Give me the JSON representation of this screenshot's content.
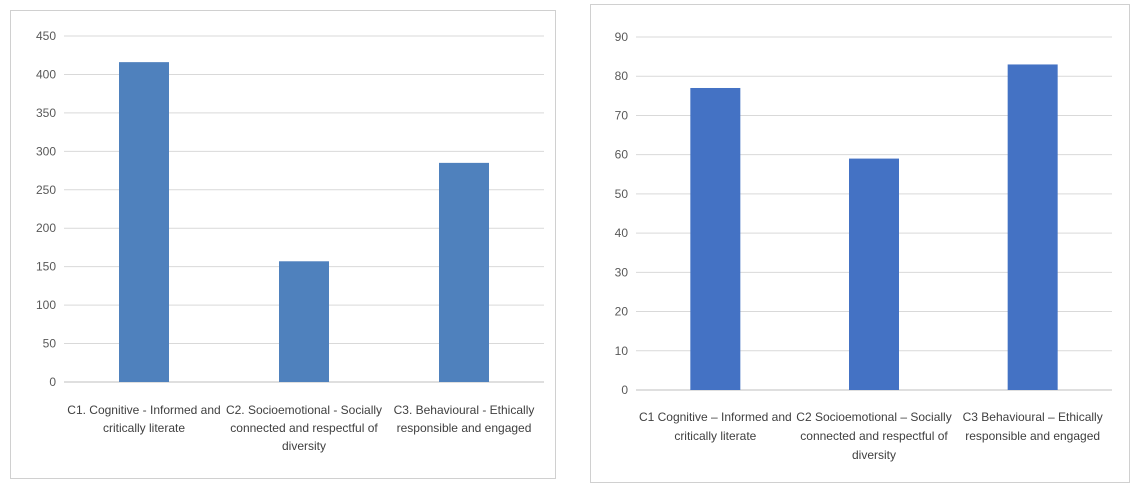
{
  "chart_data": [
    {
      "type": "bar",
      "categories": [
        [
          "C1. Cognitive - Informed and",
          "critically literate"
        ],
        [
          "C2. Socioemotional - Socially",
          "connected and respectful of",
          "diversity"
        ],
        [
          "C3. Behavioural - Ethically",
          "responsible and engaged"
        ]
      ],
      "values": [
        416,
        157,
        285
      ],
      "ylim": [
        0,
        450
      ],
      "yticks": [
        0,
        50,
        100,
        150,
        200,
        250,
        300,
        350,
        400,
        450
      ],
      "grid": true,
      "bar_color": "#4f81bd",
      "title": "",
      "xlabel": "",
      "ylabel": ""
    },
    {
      "type": "bar",
      "categories": [
        [
          "C1 Cognitive – Informed and",
          "critically literate"
        ],
        [
          "C2 Socioemotional – Socially",
          "connected and respectful of",
          "diversity"
        ],
        [
          "C3 Behavioural – Ethically",
          "responsible and engaged"
        ]
      ],
      "values": [
        77,
        59,
        83
      ],
      "ylim": [
        0,
        90
      ],
      "yticks": [
        0,
        10,
        20,
        30,
        40,
        50,
        60,
        70,
        80,
        90
      ],
      "grid": true,
      "bar_color": "#4472c4",
      "title": "",
      "xlabel": "",
      "ylabel": ""
    }
  ]
}
